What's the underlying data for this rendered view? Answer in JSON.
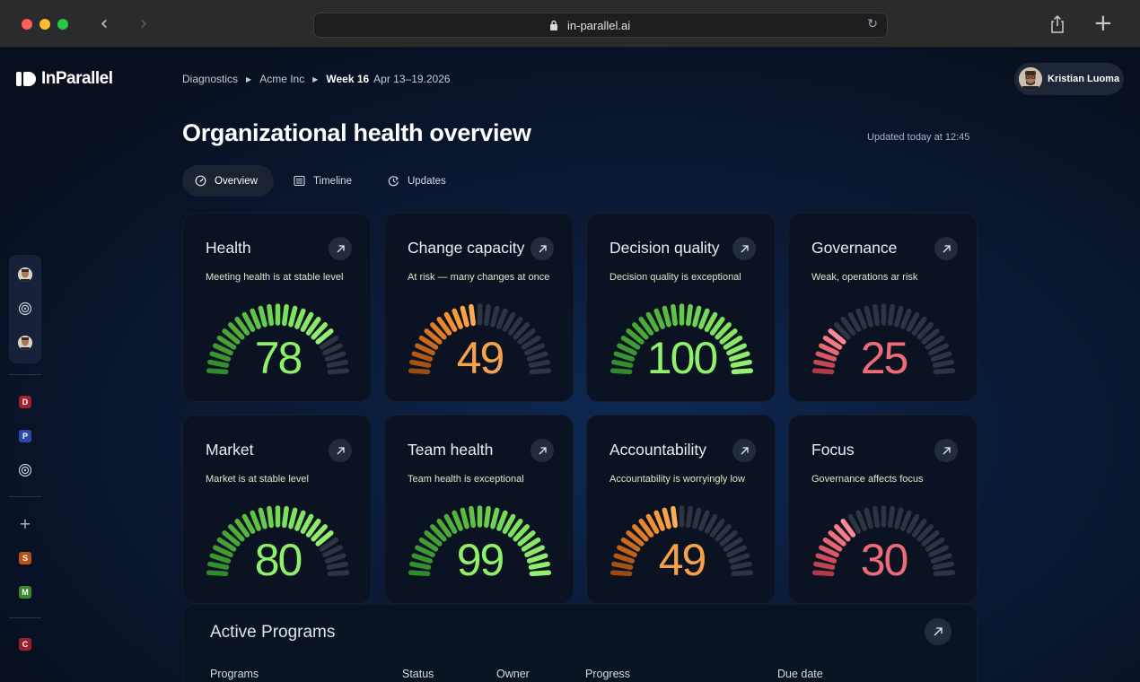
{
  "browser": {
    "url": "in-parallel.ai"
  },
  "app": {
    "brand": "InParallel"
  },
  "breadcrumb": {
    "items": [
      "Diagnostics",
      "Acme Inc"
    ],
    "week": "Week 16",
    "dates": "Apr 13–19.2026"
  },
  "user": {
    "name": "Kristian Luoma"
  },
  "page": {
    "title": "Organizational health overview",
    "updated": "Updated today at 12:45"
  },
  "tabs": [
    {
      "label": "Overview",
      "icon": "gauge-icon",
      "active": true
    },
    {
      "label": "Timeline",
      "icon": "timeline-icon",
      "active": false
    },
    {
      "label": "Updates",
      "icon": "updates-icon",
      "active": false
    }
  ],
  "rail": {
    "items": [
      "D",
      "P",
      "S",
      "M",
      "C"
    ],
    "colors": {
      "D": "#a02032",
      "P": "#2a49a8",
      "S": "#b9520e",
      "M": "#3a8a2e",
      "C": "#9b1e2e"
    }
  },
  "colors": {
    "green": "#8ff06a",
    "orange": "#f5a24a",
    "red": "#ee6c79",
    "track": "#2d3542"
  },
  "cards": [
    {
      "title": "Health",
      "subtitle": "Meeting health is at stable level",
      "value": "78",
      "score": 78,
      "tone": "green"
    },
    {
      "title": "Change capacity",
      "subtitle": "At risk — many changes at once",
      "value": "49",
      "score": 49,
      "tone": "orange"
    },
    {
      "title": "Decision quality",
      "subtitle": "Decision quality is exceptional",
      "value": "100",
      "score": 100,
      "tone": "green"
    },
    {
      "title": "Governance",
      "subtitle": "Weak, operations ar risk",
      "value": "25",
      "score": 25,
      "tone": "red"
    },
    {
      "title": "Market",
      "subtitle": "Market is at stable level",
      "value": "80",
      "score": 80,
      "tone": "green"
    },
    {
      "title": "Team health",
      "subtitle": "Team health is exceptional",
      "value": "99",
      "score": 99,
      "tone": "green"
    },
    {
      "title": "Accountability",
      "subtitle": "Accountability is worryingly low",
      "value": "49",
      "score": 49,
      "tone": "orange"
    },
    {
      "title": "Focus",
      "subtitle": "Governance affects focus",
      "value": "30",
      "score": 30,
      "tone": "red"
    }
  ],
  "programs": {
    "title": "Active Programs",
    "columns": [
      "Programs",
      "Status",
      "Owner",
      "Progress",
      "Due date"
    ]
  }
}
